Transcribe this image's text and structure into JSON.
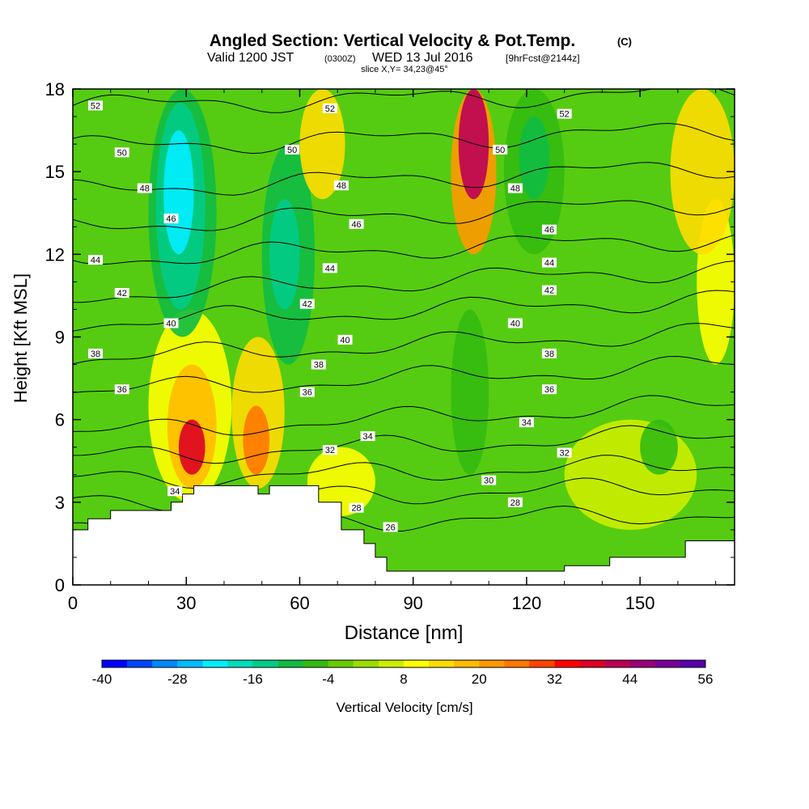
{
  "chart_data": {
    "type": "heatmap",
    "title": "Angled Section: Vertical Velocity & Pot.Temp.",
    "title_units": "(C)",
    "subtitle_prefix": "Valid 1200 JST",
    "subtitle_utc": "(0300Z)",
    "subtitle_date": "WED 13 Jul 2016",
    "subtitle_fcst": "[9hrFcst@2144z]",
    "slice_label": "slice X,Y= 34,23@45°",
    "xlabel": "Distance [nm]",
    "ylabel": "Height [Kft MSL]",
    "xlim": [
      0,
      175
    ],
    "ylim": [
      0,
      18
    ],
    "x_ticks": [
      "0",
      "30",
      "60",
      "90",
      "120",
      "150"
    ],
    "y_ticks": [
      "0",
      "3",
      "6",
      "9",
      "12",
      "15",
      "18"
    ],
    "x_tick_values": [
      0,
      30,
      60,
      90,
      120,
      150
    ],
    "y_tick_values": [
      0,
      3,
      6,
      9,
      12,
      15,
      18
    ],
    "colorbar": {
      "label": "Vertical Velocity [cm/s]",
      "tick_labels": [
        "-40",
        "-28",
        "-16",
        "-4",
        "8",
        "20",
        "32",
        "44",
        "56"
      ],
      "colors": [
        "#0000ff",
        "#0044ff",
        "#0088ff",
        "#00bbff",
        "#00eeff",
        "#00ddbb",
        "#00cc88",
        "#11bb44",
        "#33bb11",
        "#66cc00",
        "#99dd00",
        "#ccee00",
        "#ffff00",
        "#ffdd00",
        "#ffbb00",
        "#ff9900",
        "#ff7700",
        "#ff4400",
        "#ff0000",
        "#dd0022",
        "#bb0055",
        "#990077",
        "#770099",
        "#5500aa"
      ]
    },
    "base_color": "#55cc11",
    "velocity_cells": [
      {
        "x0": 24,
        "x1": 32,
        "y0": 12,
        "y1": 16.5,
        "value": -22
      },
      {
        "x0": 22,
        "x1": 35,
        "y0": 10,
        "y1": 17.5,
        "value": -16
      },
      {
        "x0": 20,
        "x1": 38,
        "y0": 9,
        "y1": 18,
        "value": -10
      },
      {
        "x0": 52,
        "x1": 60,
        "y0": 10,
        "y1": 14,
        "value": -16
      },
      {
        "x0": 50,
        "x1": 64,
        "y0": 8,
        "y1": 16,
        "value": -10
      },
      {
        "x0": 118,
        "x1": 126,
        "y0": 14,
        "y1": 17,
        "value": -12
      },
      {
        "x0": 114,
        "x1": 130,
        "y0": 12,
        "y1": 18,
        "value": -6
      },
      {
        "x0": 102,
        "x1": 110,
        "y0": 14,
        "y1": 18,
        "value": 40
      },
      {
        "x0": 100,
        "x1": 112,
        "y0": 12,
        "y1": 18,
        "value": 20
      },
      {
        "x0": 28,
        "x1": 35,
        "y0": 4,
        "y1": 6,
        "value": 36
      },
      {
        "x0": 25,
        "x1": 38,
        "y0": 3.5,
        "y1": 8,
        "value": 18
      },
      {
        "x0": 20,
        "x1": 42,
        "y0": 3,
        "y1": 10,
        "value": 8
      },
      {
        "x0": 45,
        "x1": 52,
        "y0": 4,
        "y1": 6.5,
        "value": 26
      },
      {
        "x0": 42,
        "x1": 56,
        "y0": 3.5,
        "y1": 9,
        "value": 14
      },
      {
        "x0": 62,
        "x1": 80,
        "y0": 2.5,
        "y1": 5,
        "value": 10
      },
      {
        "x0": 60,
        "x1": 72,
        "y0": 14,
        "y1": 18,
        "value": 12
      },
      {
        "x0": 158,
        "x1": 175,
        "y0": 12,
        "y1": 18,
        "value": 14
      },
      {
        "x0": 165,
        "x1": 175,
        "y0": 8,
        "y1": 14,
        "value": 8
      },
      {
        "x0": 130,
        "x1": 165,
        "y0": 2,
        "y1": 6,
        "value": 6
      },
      {
        "x0": 100,
        "x1": 110,
        "y0": 4,
        "y1": 10,
        "value": -8
      },
      {
        "x0": 150,
        "x1": 160,
        "y0": 4,
        "y1": 6,
        "value": -6
      }
    ],
    "terrain": [
      {
        "x": 0,
        "h": 2.0
      },
      {
        "x": 4,
        "h": 2.0
      },
      {
        "x": 4,
        "h": 2.4
      },
      {
        "x": 10,
        "h": 2.4
      },
      {
        "x": 10,
        "h": 2.7
      },
      {
        "x": 26,
        "h": 2.7
      },
      {
        "x": 26,
        "h": 3.0
      },
      {
        "x": 29,
        "h": 3.0
      },
      {
        "x": 29,
        "h": 3.3
      },
      {
        "x": 32,
        "h": 3.3
      },
      {
        "x": 32,
        "h": 3.6
      },
      {
        "x": 49,
        "h": 3.6
      },
      {
        "x": 49,
        "h": 3.3
      },
      {
        "x": 52,
        "h": 3.3
      },
      {
        "x": 52,
        "h": 3.6
      },
      {
        "x": 65,
        "h": 3.6
      },
      {
        "x": 65,
        "h": 3.0
      },
      {
        "x": 71,
        "h": 3.0
      },
      {
        "x": 71,
        "h": 2.0
      },
      {
        "x": 77,
        "h": 2.0
      },
      {
        "x": 77,
        "h": 1.5
      },
      {
        "x": 80,
        "h": 1.5
      },
      {
        "x": 80,
        "h": 1.0
      },
      {
        "x": 83,
        "h": 1.0
      },
      {
        "x": 83,
        "h": 0.5
      },
      {
        "x": 130,
        "h": 0.5
      },
      {
        "x": 130,
        "h": 0.7
      },
      {
        "x": 142,
        "h": 0.7
      },
      {
        "x": 142,
        "h": 1.0
      },
      {
        "x": 162,
        "h": 1.0
      },
      {
        "x": 162,
        "h": 1.6
      },
      {
        "x": 175,
        "h": 1.6
      }
    ],
    "theta_contours": [
      {
        "value": 52,
        "y_left": 17.4,
        "y_right": 17.9
      },
      {
        "value": 50,
        "y_left": 15.9,
        "y_right": 16.5
      },
      {
        "value": 48,
        "y_left": 14.3,
        "y_right": 15.2
      },
      {
        "value": 46,
        "y_left": 13.0,
        "y_right": 13.9
      },
      {
        "value": 44,
        "y_left": 11.8,
        "y_right": 12.6
      },
      {
        "value": 42,
        "y_left": 10.5,
        "y_right": 11.5
      },
      {
        "value": 40,
        "y_left": 9.5,
        "y_right": 10.4
      },
      {
        "value": 38,
        "y_left": 8.2,
        "y_right": 9.2
      },
      {
        "value": 36,
        "y_left": 7.0,
        "y_right": 8.0
      },
      {
        "value": 34,
        "y_left": 5.5,
        "y_right": 6.6
      },
      {
        "value": 32,
        "y_left": 4.6,
        "y_right": 5.5
      },
      {
        "value": 30,
        "y_left": 3.8,
        "y_right": 4.4
      },
      {
        "value": 28,
        "y_left": 3.0,
        "y_right": 3.6
      },
      {
        "value": 26,
        "y_left": 2.1,
        "y_right": 2.6
      }
    ],
    "contour_labels": [
      {
        "text": "52",
        "x": 6,
        "y": 17.4
      },
      {
        "text": "52",
        "x": 68,
        "y": 17.3
      },
      {
        "text": "52",
        "x": 130,
        "y": 17.1
      },
      {
        "text": "50",
        "x": 13,
        "y": 15.7
      },
      {
        "text": "50",
        "x": 58,
        "y": 15.8
      },
      {
        "text": "50",
        "x": 113,
        "y": 15.8
      },
      {
        "text": "48",
        "x": 19,
        "y": 14.4
      },
      {
        "text": "48",
        "x": 71,
        "y": 14.5
      },
      {
        "text": "48",
        "x": 117,
        "y": 14.4
      },
      {
        "text": "46",
        "x": 26,
        "y": 13.3
      },
      {
        "text": "46",
        "x": 75,
        "y": 13.1
      },
      {
        "text": "46",
        "x": 126,
        "y": 12.9
      },
      {
        "text": "44",
        "x": 6,
        "y": 11.8
      },
      {
        "text": "44",
        "x": 68,
        "y": 11.5
      },
      {
        "text": "44",
        "x": 126,
        "y": 11.7
      },
      {
        "text": "42",
        "x": 13,
        "y": 10.6
      },
      {
        "text": "42",
        "x": 62,
        "y": 10.2
      },
      {
        "text": "42",
        "x": 126,
        "y": 10.7
      },
      {
        "text": "40",
        "x": 26,
        "y": 9.5
      },
      {
        "text": "40",
        "x": 72,
        "y": 8.9
      },
      {
        "text": "40",
        "x": 117,
        "y": 9.5
      },
      {
        "text": "38",
        "x": 6,
        "y": 8.4
      },
      {
        "text": "38",
        "x": 65,
        "y": 8.0
      },
      {
        "text": "38",
        "x": 126,
        "y": 8.4
      },
      {
        "text": "36",
        "x": 13,
        "y": 7.1
      },
      {
        "text": "36",
        "x": 62,
        "y": 7.0
      },
      {
        "text": "36",
        "x": 126,
        "y": 7.1
      },
      {
        "text": "34",
        "x": 27,
        "y": 3.4
      },
      {
        "text": "34",
        "x": 78,
        "y": 5.4
      },
      {
        "text": "34",
        "x": 120,
        "y": 5.9
      },
      {
        "text": "32",
        "x": 68,
        "y": 4.9
      },
      {
        "text": "32",
        "x": 130,
        "y": 4.8
      },
      {
        "text": "30",
        "x": 110,
        "y": 3.8
      },
      {
        "text": "28",
        "x": 75,
        "y": 2.8
      },
      {
        "text": "28",
        "x": 117,
        "y": 3.0
      },
      {
        "text": "26",
        "x": 84,
        "y": 2.1
      }
    ],
    "grid": false
  }
}
